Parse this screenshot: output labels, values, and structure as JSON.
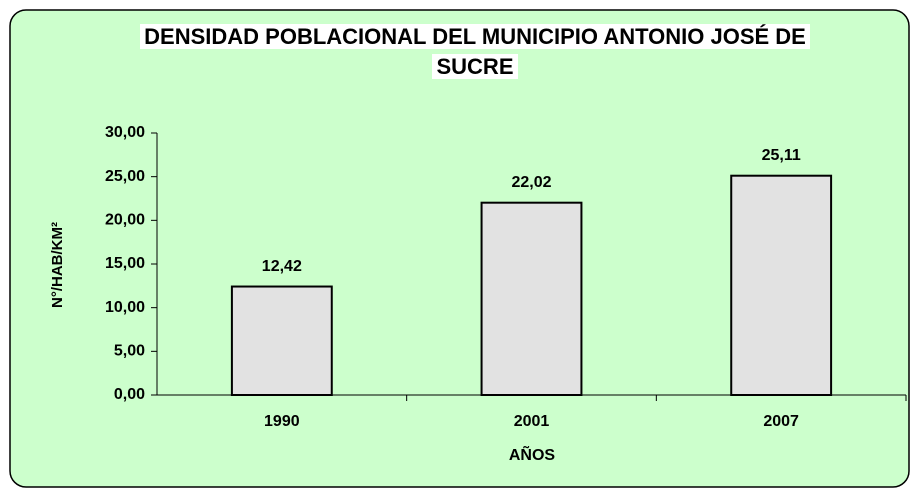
{
  "chart_data": {
    "type": "bar",
    "title": "DENSIDAD POBLACIONAL DEL MUNICIPIO ANTONIO JOSÉ DE SUCRE",
    "x_label": "AÑOS",
    "y_label": "N°/HAB/KM²",
    "categories": [
      "1990",
      "2001",
      "2007"
    ],
    "values": [
      12.42,
      22.02,
      25.11
    ],
    "value_labels": [
      "12,42",
      "22,02",
      "25,11"
    ],
    "color": "#e2e2e2",
    "background": "#ccffcc",
    "ylim": [
      0,
      30
    ],
    "yticks": [
      {
        "value": 0,
        "label": "0,00"
      },
      {
        "value": 5,
        "label": "5,00"
      },
      {
        "value": 10,
        "label": "10,00"
      },
      {
        "value": 15,
        "label": "15,00"
      },
      {
        "value": 20,
        "label": "20,00"
      },
      {
        "value": 25,
        "label": "25,00"
      },
      {
        "value": 30,
        "label": "30,00"
      }
    ],
    "grid": false
  }
}
